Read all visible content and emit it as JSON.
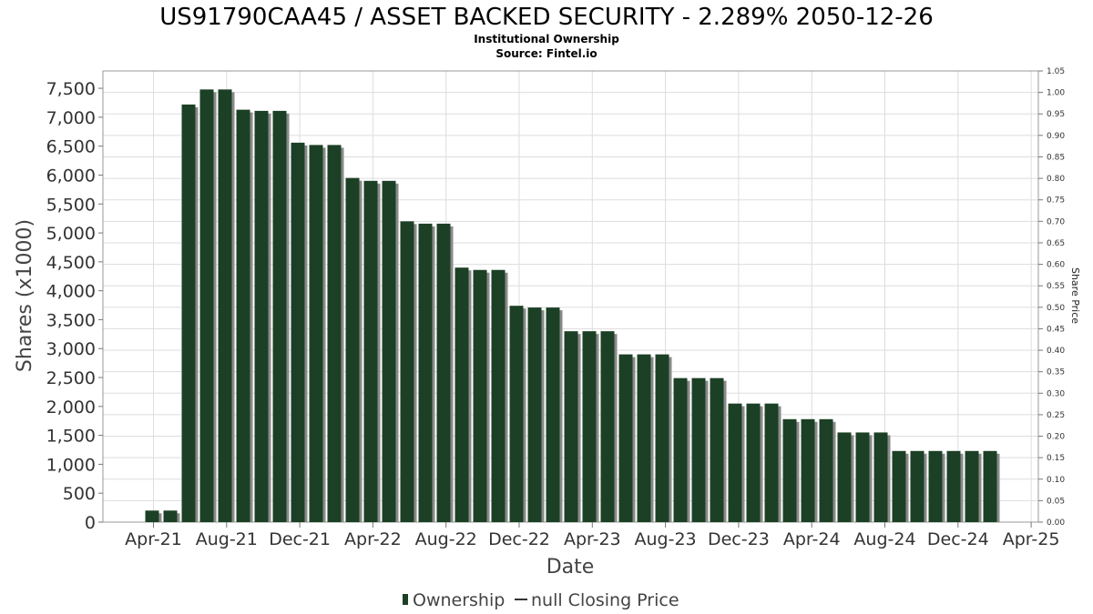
{
  "chart_data": {
    "type": "bar",
    "title": "US91790CAA45 / ASSET BACKED SECURITY - 2.289% 2050-12-26",
    "subtitle_lines": [
      "Institutional Ownership",
      "Source: Fintel.io"
    ],
    "xlabel": "Date",
    "ylabel": "Shares (x1000)",
    "y2label": "Share Price",
    "ylim": [
      0,
      7800
    ],
    "y2lim": [
      0,
      1.05
    ],
    "yticks": [
      "0",
      "500",
      "1,000",
      "1,500",
      "2,000",
      "2,500",
      "3,000",
      "3,500",
      "4,000",
      "4,500",
      "5,000",
      "5,500",
      "6,000",
      "6,500",
      "7,000",
      "7,500"
    ],
    "y2ticks": [
      "0.00",
      "0.05",
      "0.10",
      "0.15",
      "0.20",
      "0.25",
      "0.30",
      "0.35",
      "0.40",
      "0.45",
      "0.50",
      "0.55",
      "0.60",
      "0.65",
      "0.70",
      "0.75",
      "0.80",
      "0.85",
      "0.90",
      "0.95",
      "1.00",
      "1.05"
    ],
    "xticks": [
      "Apr-21",
      "Aug-21",
      "Dec-21",
      "Apr-22",
      "Aug-22",
      "Dec-22",
      "Apr-23",
      "Aug-23",
      "Dec-23",
      "Apr-24",
      "Aug-24",
      "Dec-24",
      "Apr-25"
    ],
    "grid": true,
    "legend_position": "bottom",
    "series": [
      {
        "name": "Ownership",
        "color": "#1c4025",
        "values": [
          200,
          200,
          7220,
          7480,
          7480,
          7130,
          7110,
          7110,
          6560,
          6520,
          6520,
          5950,
          5900,
          5900,
          5200,
          5160,
          5160,
          4400,
          4360,
          4360,
          3740,
          3710,
          3710,
          3300,
          3300,
          3300,
          2900,
          2900,
          2900,
          2490,
          2490,
          2490,
          2050,
          2050,
          2050,
          1780,
          1780,
          1780,
          1550,
          1550,
          1550,
          1230,
          1230,
          1230,
          1230,
          1230,
          1230
        ]
      },
      {
        "name": "null Closing Price",
        "color": "#333333",
        "values": []
      }
    ]
  }
}
